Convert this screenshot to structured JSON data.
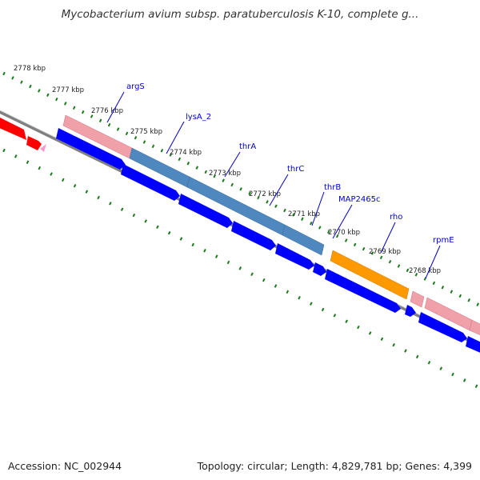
{
  "title": "Mycobacterium avium subsp. paratuberculosis K-10, complete g...",
  "accession": "Accession: NC_002944",
  "summary": "Topology: circular; Length: 4,829,781 bp; Genes: 4,399",
  "colors": {
    "backbone": "#808080",
    "tick": "#1a7a1a",
    "gene_blue": "#0000ff",
    "gene_red": "#ff0000",
    "gene_pink": "#f0a0a8",
    "gene_steelblue": "#4f88bf",
    "gene_orange": "#ff9900",
    "label": "#0000cc"
  },
  "kbp_labels": [
    "2778 kbp",
    "2777 kbp",
    "2776 kbp",
    "2775 kbp",
    "2774 kbp",
    "2773 kbp",
    "2772 kbp",
    "2771 kbp",
    "2770 kbp",
    "2769 kbp",
    "2768 kbp"
  ],
  "genes": [
    {
      "name": "argS",
      "color": "pink"
    },
    {
      "name": "lysA_2",
      "color": "steelblue"
    },
    {
      "name": "thrA",
      "color": "steelblue"
    },
    {
      "name": "thrC",
      "color": "steelblue"
    },
    {
      "name": "thrB",
      "color": "steelblue"
    },
    {
      "name": "MAP2465c",
      "color": "orange"
    },
    {
      "name": "rho",
      "color": "pink"
    },
    {
      "name": "rpmE",
      "color": "pink"
    }
  ]
}
